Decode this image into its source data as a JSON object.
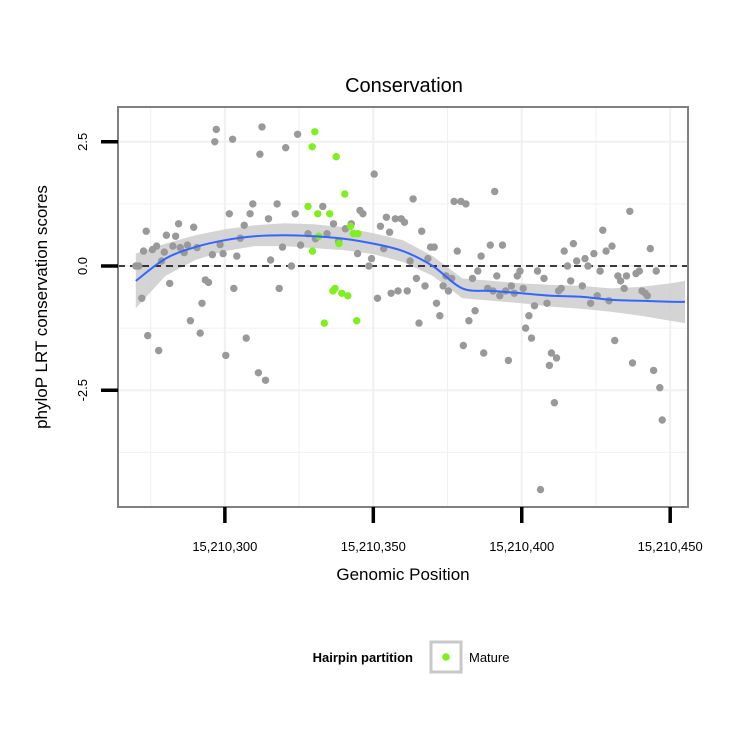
{
  "chart_data": {
    "type": "scatter",
    "title": "Conservation",
    "xlabel": "Genomic Position",
    "ylabel": "phyloP LRT conservation scores",
    "xlim": [
      15210264,
      15210456
    ],
    "ylim": [
      -4.85,
      3.2
    ],
    "x_ticks": [
      15210300,
      15210350,
      15210400,
      15210450
    ],
    "x_tick_labels": [
      "15,210,300",
      "15,210,350",
      "15,210,400",
      "15,210,450"
    ],
    "y_ticks": [
      2.5,
      0.0,
      -2.5
    ],
    "y_tick_labels": [
      "2.5",
      "0.0",
      "-2.5"
    ],
    "grid": true,
    "reference_line": {
      "y": 0,
      "style": "dashed",
      "color": "#000000"
    },
    "colors": {
      "other": "#999999",
      "mature": "#7fef1f",
      "smooth_line": "#3366ff",
      "confidence_band": "#cccccc",
      "panel_border": "#808080",
      "grid": "#f0f0f0"
    },
    "legend": {
      "title": "Hairpin partition",
      "position": "bottom",
      "entries": [
        {
          "label": "Mature",
          "color": "#7fef1f"
        }
      ]
    },
    "series": [
      {
        "partition": "other",
        "points": [
          [
            15210270,
            0.0
          ],
          [
            15210271,
            0.0
          ],
          [
            15210272,
            -0.65
          ],
          [
            15210272.6,
            0.3
          ],
          [
            15210273.5,
            0.7
          ],
          [
            15210274,
            -1.4
          ],
          [
            15210275.6,
            0.33
          ],
          [
            15210277,
            0.4
          ],
          [
            15210277.7,
            -1.7
          ],
          [
            15210278.7,
            0.1
          ],
          [
            15210279.6,
            0.28
          ],
          [
            15210280.3,
            0.62
          ],
          [
            15210281.4,
            -0.35
          ],
          [
            15210282.5,
            0.4
          ],
          [
            15210283.4,
            0.6
          ],
          [
            15210284.4,
            0.85
          ],
          [
            15210285,
            0.37
          ],
          [
            15210286.3,
            0.27
          ],
          [
            15210287.4,
            0.42
          ],
          [
            15210288.4,
            -1.1
          ],
          [
            15210289.5,
            0.78
          ],
          [
            15210290.6,
            0.37
          ],
          [
            15210291.7,
            -1.35
          ],
          [
            15210292.3,
            -0.75
          ],
          [
            15210293.4,
            -0.28
          ],
          [
            15210294.5,
            -0.33
          ],
          [
            15210295.8,
            0.23
          ],
          [
            15210296.6,
            2.5
          ],
          [
            15210297.1,
            2.75
          ],
          [
            15210298.4,
            0.43
          ],
          [
            15210299.4,
            0.25
          ],
          [
            15210300.3,
            -1.8
          ],
          [
            15210301.5,
            1.05
          ],
          [
            15210302.6,
            2.55
          ],
          [
            15210303,
            -0.45
          ],
          [
            15210304,
            0.2
          ],
          [
            15210305.2,
            0.56
          ],
          [
            15210306.5,
            0.82
          ],
          [
            15210307.2,
            -1.45
          ],
          [
            15210308.5,
            1.05
          ],
          [
            15210309.4,
            1.25
          ],
          [
            15210311.3,
            -2.15
          ],
          [
            15210311.8,
            2.25
          ],
          [
            15210312.5,
            2.8
          ],
          [
            15210313.7,
            -2.3
          ],
          [
            15210314.7,
            0.95
          ],
          [
            15210315.4,
            0.12
          ],
          [
            15210317.6,
            1.25
          ],
          [
            15210318.3,
            -0.45
          ],
          [
            15210319.4,
            0.38
          ],
          [
            15210320.5,
            2.38
          ],
          [
            15210322.4,
            0.0
          ],
          [
            15210323.7,
            1.05
          ],
          [
            15210324.5,
            2.65
          ],
          [
            15210325.5,
            0.42
          ],
          [
            15210328,
            0.65
          ],
          [
            15210330.5,
            0.55
          ],
          [
            15210333,
            1.2
          ],
          [
            15210334.4,
            0.65
          ],
          [
            15210336.6,
            0.85
          ],
          [
            15210338.3,
            0.5
          ],
          [
            15210340.6,
            0.75
          ],
          [
            15210342.6,
            0.85
          ],
          [
            15210344.7,
            0.25
          ],
          [
            15210345.5,
            1.12
          ],
          [
            15210346.5,
            1.05
          ],
          [
            15210348.5,
            0.0
          ],
          [
            15210349.4,
            0.15
          ],
          [
            15210350.3,
            1.85
          ],
          [
            15210351.4,
            -0.65
          ],
          [
            15210352.4,
            0.8
          ],
          [
            15210353.5,
            0.35
          ],
          [
            15210354.4,
            0.98
          ],
          [
            15210355.5,
            0.68
          ],
          [
            15210356,
            -0.55
          ],
          [
            15210357.4,
            0.95
          ],
          [
            15210358.3,
            -0.5
          ],
          [
            15210359.4,
            0.95
          ],
          [
            15210360.5,
            0.88
          ],
          [
            15210361.4,
            -0.5
          ],
          [
            15210362.4,
            0.1
          ],
          [
            15210363.4,
            1.35
          ],
          [
            15210364.5,
            -0.25
          ],
          [
            15210365.4,
            -1.15
          ],
          [
            15210366.3,
            0.7
          ],
          [
            15210367.4,
            -0.4
          ],
          [
            15210368.4,
            0.15
          ],
          [
            15210369.3,
            0.38
          ],
          [
            15210370.5,
            0.38
          ],
          [
            15210371.3,
            -0.75
          ],
          [
            15210372.4,
            -1.0
          ],
          [
            15210373.5,
            -0.4
          ],
          [
            15210374.5,
            -0.2
          ],
          [
            15210375.3,
            -0.5
          ],
          [
            15210376.4,
            -0.25
          ],
          [
            15210377.2,
            1.3
          ],
          [
            15210378.3,
            0.3
          ],
          [
            15210379.5,
            1.3
          ],
          [
            15210380.3,
            -1.6
          ],
          [
            15210381.2,
            1.25
          ],
          [
            15210382.2,
            -1.1
          ],
          [
            15210383.4,
            -0.25
          ],
          [
            15210384.3,
            -0.9
          ],
          [
            15210385.2,
            -0.1
          ],
          [
            15210386.3,
            0.2
          ],
          [
            15210387.2,
            -1.75
          ],
          [
            15210388.5,
            -0.45
          ],
          [
            15210389.4,
            0.42
          ],
          [
            15210390.3,
            -0.5
          ],
          [
            15210390.9,
            1.5
          ],
          [
            15210391.6,
            -0.2
          ],
          [
            15210392.6,
            -0.6
          ],
          [
            15210393.5,
            0.42
          ],
          [
            15210394.6,
            -0.5
          ],
          [
            15210395.5,
            -1.9
          ],
          [
            15210396.5,
            -0.4
          ],
          [
            15210397.5,
            -0.55
          ],
          [
            15210398.5,
            -0.2
          ],
          [
            15210399.4,
            -0.1
          ],
          [
            15210400.5,
            -0.45
          ],
          [
            15210401.3,
            -1.25
          ],
          [
            15210402.4,
            -1.0
          ],
          [
            15210403.3,
            -1.45
          ],
          [
            15210404.3,
            -0.8
          ],
          [
            15210405.3,
            -0.1
          ],
          [
            15210406.3,
            -4.5
          ],
          [
            15210407.5,
            -0.25
          ],
          [
            15210408.5,
            -0.75
          ],
          [
            15210409.3,
            -2.0
          ],
          [
            15210410,
            -1.75
          ],
          [
            15210411,
            -2.75
          ],
          [
            15210411.7,
            -1.85
          ],
          [
            15210412.4,
            -0.5
          ],
          [
            15210413.3,
            -0.45
          ],
          [
            15210414.3,
            0.3
          ],
          [
            15210415.4,
            0.0
          ],
          [
            15210416.5,
            -0.3
          ],
          [
            15210417.4,
            0.45
          ],
          [
            15210418.5,
            0.1
          ],
          [
            15210420.4,
            -0.4
          ],
          [
            15210421.3,
            0.15
          ],
          [
            15210422.3,
            0.0
          ],
          [
            15210423.2,
            -0.75
          ],
          [
            15210424.3,
            0.25
          ],
          [
            15210425.4,
            -0.6
          ],
          [
            15210426.4,
            -0.1
          ],
          [
            15210427.3,
            0.72
          ],
          [
            15210428.4,
            0.3
          ],
          [
            15210429.4,
            -0.7
          ],
          [
            15210430.4,
            0.4
          ],
          [
            15210431.3,
            -1.5
          ],
          [
            15210432.4,
            -0.2
          ],
          [
            15210433.3,
            -0.3
          ],
          [
            15210434.5,
            -0.45
          ],
          [
            15210435.3,
            -0.2
          ],
          [
            15210436.4,
            1.1
          ],
          [
            15210437.3,
            -1.95
          ],
          [
            15210438.5,
            -0.15
          ],
          [
            15210439.6,
            -0.1
          ],
          [
            15210440.5,
            -0.5
          ],
          [
            15210441.6,
            -0.55
          ],
          [
            15210442.3,
            -0.6
          ],
          [
            15210443.3,
            0.35
          ],
          [
            15210444.4,
            -2.1
          ],
          [
            15210445.3,
            -0.1
          ],
          [
            15210446.5,
            -2.45
          ],
          [
            15210447.3,
            -3.1
          ]
        ]
      },
      {
        "partition": "Mature",
        "points": [
          [
            15210328,
            1.2
          ],
          [
            15210329.4,
            2.4
          ],
          [
            15210330.3,
            2.7
          ],
          [
            15210331.3,
            1.05
          ],
          [
            15210331.6,
            0.6
          ],
          [
            15210333.5,
            -1.15
          ],
          [
            15210335.3,
            1.05
          ],
          [
            15210336.4,
            -0.5
          ],
          [
            15210337.1,
            -0.45
          ],
          [
            15210337.5,
            2.2
          ],
          [
            15210338.4,
            0.45
          ],
          [
            15210339.4,
            -0.55
          ],
          [
            15210340.4,
            1.45
          ],
          [
            15210341.4,
            -0.6
          ],
          [
            15210342.3,
            0.8
          ],
          [
            15210343.3,
            0.65
          ],
          [
            15210344.4,
            -1.1
          ],
          [
            15210344.8,
            0.65
          ],
          [
            15210329.5,
            0.3
          ]
        ]
      }
    ],
    "smooth_fit": {
      "method": "loess",
      "x": [
        15210270,
        15210280,
        15210290,
        15210300,
        15210310,
        15210320,
        15210330,
        15210340,
        15210350,
        15210360,
        15210370,
        15210380,
        15210390,
        15210400,
        15210410,
        15210420,
        15210430,
        15210440,
        15210450,
        15210455
      ],
      "y": [
        -0.3,
        0.15,
        0.38,
        0.52,
        0.6,
        0.62,
        0.6,
        0.55,
        0.45,
        0.3,
        0.0,
        -0.45,
        -0.5,
        -0.55,
        -0.6,
        -0.62,
        -0.68,
        -0.7,
        -0.72,
        -0.72
      ],
      "band_upper": [
        0.25,
        0.45,
        0.62,
        0.74,
        0.82,
        0.86,
        0.84,
        0.78,
        0.66,
        0.52,
        0.2,
        -0.25,
        -0.3,
        -0.35,
        -0.38,
        -0.4,
        -0.45,
        -0.42,
        -0.35,
        -0.3
      ],
      "band_lower": [
        -0.85,
        -0.2,
        0.12,
        0.3,
        0.4,
        0.4,
        0.36,
        0.32,
        0.24,
        0.08,
        -0.2,
        -0.65,
        -0.7,
        -0.75,
        -0.82,
        -0.86,
        -0.92,
        -1.0,
        -1.1,
        -1.15
      ]
    }
  }
}
